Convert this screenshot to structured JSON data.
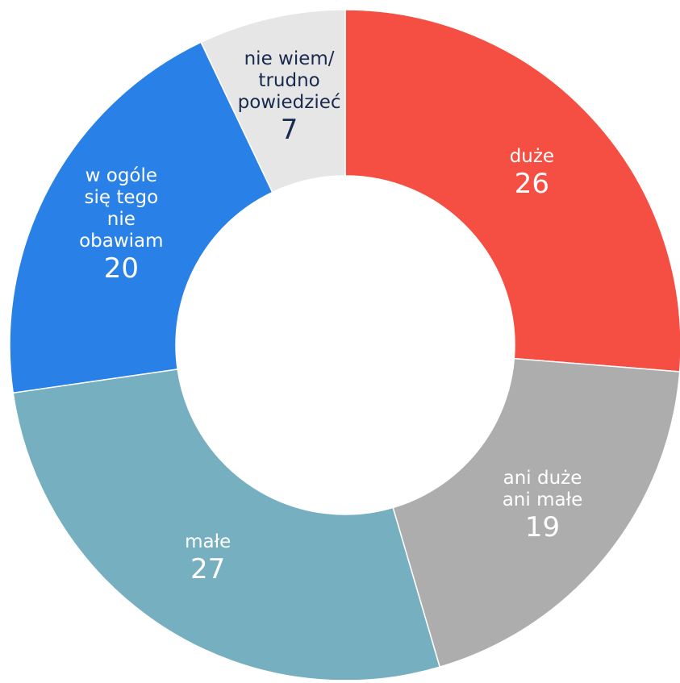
{
  "chart_data": {
    "type": "donut",
    "categories": [
      "duże",
      "ani duże\nani małe",
      "małe",
      "w ogóle\nsię tego\nnie\nobawiam",
      "nie wiem/\ntrudno\npowiedzieć"
    ],
    "values": [
      26,
      19,
      27,
      20,
      7
    ],
    "colors": [
      "#f54e42",
      "#adadad",
      "#76afbf",
      "#2980e6",
      "#e6e6e6"
    ]
  }
}
